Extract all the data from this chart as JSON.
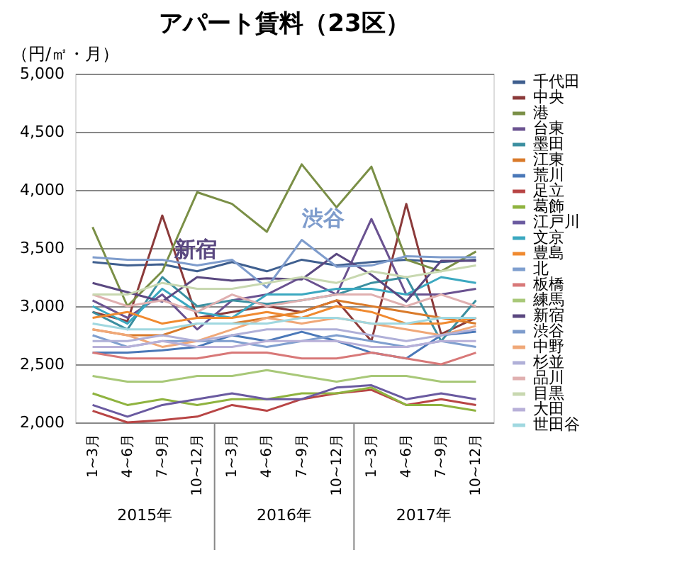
{
  "chart_data": {
    "type": "line",
    "title": "アパート賃料（23区）",
    "ylabel": "（円/㎡・月）",
    "categories": [
      "1~3月",
      "4~6月",
      "7~9月",
      "10~12月",
      "1~3月",
      "4~6月",
      "7~9月",
      "10~12月",
      "1~3月",
      "4~6月",
      "7~9月",
      "10~12月"
    ],
    "ylim": [
      2000,
      5000
    ],
    "yticks": [
      {
        "value": 2000,
        "label": "2,000"
      },
      {
        "value": 2500,
        "label": "2,500"
      },
      {
        "value": 3000,
        "label": "3,000"
      },
      {
        "value": 3500,
        "label": "3,500"
      },
      {
        "value": 4000,
        "label": "4,000"
      },
      {
        "value": 4500,
        "label": "4,500"
      },
      {
        "value": 5000,
        "label": "5,000"
      }
    ],
    "grid": "y",
    "legend": "right",
    "marker": "none",
    "line_style": "solid",
    "annotations": [
      "新宿",
      "渋谷",
      "2015年",
      "2016年",
      "2017年"
    ],
    "series": [
      {
        "name": "千代田",
        "color": "#3f5f8f",
        "values": [
          3380,
          3350,
          3360,
          3300,
          3380,
          3300,
          3400,
          3350,
          3380,
          3400,
          3380,
          3400
        ]
      },
      {
        "name": "中央",
        "color": "#8b3a3a",
        "values": [
          2950,
          2870,
          3780,
          2900,
          2950,
          3000,
          2950,
          3050,
          2700,
          3880,
          2760,
          2900
        ]
      },
      {
        "name": "港",
        "color": "#7a8f46",
        "values": [
          3680,
          3000,
          3300,
          3980,
          3880,
          3640,
          4220,
          3850,
          4200,
          3400,
          3300,
          3470
        ]
      },
      {
        "name": "台東",
        "color": "#6a5290",
        "values": [
          3050,
          2900,
          3100,
          2800,
          3050,
          3100,
          3250,
          3100,
          3750,
          3100,
          3100,
          3150
        ]
      },
      {
        "name": "墨田",
        "color": "#3b8fa0",
        "values": [
          2950,
          2800,
          3250,
          3000,
          3050,
          3020,
          3050,
          3100,
          3200,
          3250,
          2700,
          3050
        ]
      },
      {
        "name": "江東",
        "color": "#d97a2a",
        "values": [
          2800,
          2750,
          2750,
          2850,
          2850,
          2900,
          2950,
          3050,
          3000,
          2950,
          2900,
          2850
        ]
      },
      {
        "name": "荒川",
        "color": "#4a78b8",
        "values": [
          2600,
          2600,
          2620,
          2650,
          2750,
          2700,
          2780,
          2700,
          2600,
          2550,
          2750,
          2780
        ]
      },
      {
        "name": "足立",
        "color": "#b84545",
        "values": [
          2100,
          2000,
          2020,
          2050,
          2150,
          2100,
          2200,
          2250,
          2280,
          2150,
          2200,
          2150
        ]
      },
      {
        "name": "葛飾",
        "color": "#8fb33f",
        "values": [
          2250,
          2150,
          2200,
          2150,
          2200,
          2200,
          2250,
          2250,
          2300,
          2150,
          2150,
          2100
        ]
      },
      {
        "name": "江戸川",
        "color": "#6a5aa0",
        "values": [
          2150,
          2050,
          2150,
          2200,
          2250,
          2200,
          2200,
          2300,
          2320,
          2200,
          2250,
          2200
        ]
      },
      {
        "name": "文京",
        "color": "#3ba8c0",
        "values": [
          3000,
          2850,
          3150,
          2950,
          2900,
          3100,
          3100,
          3150,
          3150,
          3100,
          3250,
          3200
        ]
      },
      {
        "name": "豊島",
        "color": "#f08a30",
        "values": [
          2900,
          2950,
          2850,
          2900,
          2900,
          2950,
          2900,
          3000,
          2950,
          2850,
          2850,
          2900
        ]
      },
      {
        "name": "北",
        "color": "#7f9fcf",
        "values": [
          2750,
          2650,
          2700,
          2700,
          2700,
          2650,
          2700,
          2750,
          2700,
          2650,
          2700,
          2650
        ]
      },
      {
        "name": "板橋",
        "color": "#d87878",
        "values": [
          2600,
          2550,
          2550,
          2550,
          2600,
          2600,
          2550,
          2550,
          2600,
          2550,
          2500,
          2600
        ]
      },
      {
        "name": "練馬",
        "color": "#a8c878",
        "values": [
          2400,
          2350,
          2350,
          2400,
          2400,
          2450,
          2400,
          2350,
          2400,
          2400,
          2350,
          2350
        ]
      },
      {
        "name": "新宿",
        "color": "#5a4880",
        "values": [
          3200,
          3120,
          3040,
          3250,
          3220,
          3240,
          3230,
          3450,
          3270,
          3040,
          3390,
          3390
        ]
      },
      {
        "name": "渋谷",
        "color": "#7e9ccc",
        "values": [
          3420,
          3400,
          3400,
          3350,
          3400,
          3160,
          3570,
          3340,
          3350,
          3430,
          3420,
          3420
        ]
      },
      {
        "name": "中野",
        "color": "#f0a878",
        "values": [
          2800,
          2750,
          2650,
          2700,
          2800,
          2900,
          2850,
          2900,
          2850,
          2800,
          2750,
          2830
        ]
      },
      {
        "name": "杉並",
        "color": "#b0b0d8",
        "values": [
          2700,
          2700,
          2750,
          2700,
          2750,
          2800,
          2800,
          2800,
          2750,
          2700,
          2750,
          2800
        ]
      },
      {
        "name": "品川",
        "color": "#e0b0b0",
        "values": [
          3100,
          3000,
          3050,
          2950,
          3100,
          3000,
          3050,
          3100,
          3100,
          3000,
          3100,
          3000
        ]
      },
      {
        "name": "目黒",
        "color": "#c8d8b0",
        "values": [
          3100,
          3100,
          3200,
          3150,
          3150,
          3200,
          3250,
          3200,
          3300,
          3250,
          3300,
          3350
        ]
      },
      {
        "name": "大田",
        "color": "#b8b0d8",
        "values": [
          2650,
          2650,
          2700,
          2650,
          2650,
          2700,
          2700,
          2700,
          2650,
          2650,
          2700,
          2700
        ]
      },
      {
        "name": "世田谷",
        "color": "#a0d8e0",
        "values": [
          2850,
          2800,
          2800,
          2850,
          2850,
          2850,
          2900,
          2900,
          2850,
          2850,
          2900,
          2900
        ]
      }
    ]
  }
}
